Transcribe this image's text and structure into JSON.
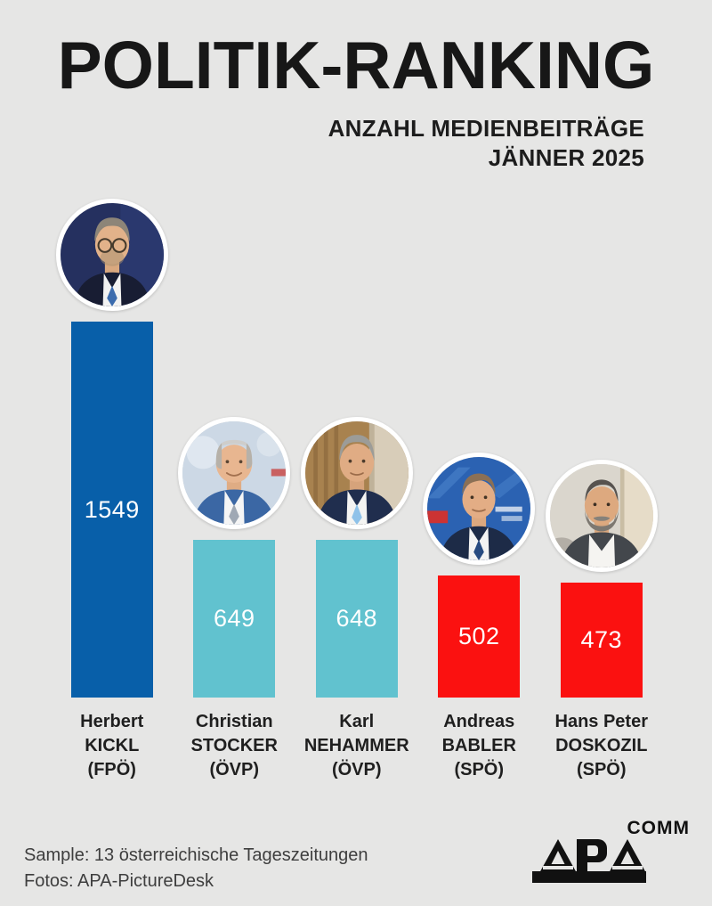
{
  "title": "POLITIK-RANKING",
  "subtitle": {
    "line1": "ANZAHL MEDIENBEITRÄGE",
    "line2": "JÄNNER 2025"
  },
  "chart_data": {
    "type": "bar",
    "title": "POLITIK-RANKING",
    "subtitle": "ANZAHL MEDIENBEITRÄGE JÄNNER 2025",
    "categories": [
      "Herbert KICKL (FPÖ)",
      "Christian STOCKER (ÖVP)",
      "Karl NEHAMMER (ÖVP)",
      "Andreas BABLER (SPÖ)",
      "Hans Peter DOSKOZIL (SPÖ)"
    ],
    "values": [
      1549,
      649,
      648,
      502,
      473
    ],
    "value_labels": [
      "1549",
      "649",
      "648",
      "502",
      "473"
    ],
    "bar_colors": [
      "#085fa9",
      "#61c2cf",
      "#61c2cf",
      "#fb1110",
      "#fb1110"
    ],
    "ylim": [
      0,
      1549
    ],
    "grid": false,
    "legend": false,
    "xlabel": "",
    "ylabel": "Anzahl Medienbeiträge"
  },
  "bars": [
    {
      "first_name": "Herbert",
      "last_name": "KICKL",
      "party": "(FPÖ)",
      "value": "1549"
    },
    {
      "first_name": "Christian",
      "last_name": "STOCKER",
      "party": "(ÖVP)",
      "value": "649"
    },
    {
      "first_name": "Karl",
      "last_name": "NEHAMMER",
      "party": "(ÖVP)",
      "value": "648"
    },
    {
      "first_name": "Andreas",
      "last_name": "BABLER",
      "party": "(SPÖ)",
      "value": "502"
    },
    {
      "first_name": "Hans Peter",
      "last_name": "DOSKOZIL",
      "party": "(SPÖ)",
      "value": "473"
    }
  ],
  "footer": {
    "sample": "Sample: 13 österreichische Tageszeitungen",
    "fotos": "Fotos: APA-PictureDesk"
  },
  "logo": {
    "brand": "APA",
    "suffix": "COMM"
  },
  "colors": {
    "background": "#e6e6e5",
    "bar_blue": "#085fa9",
    "bar_teal": "#61c2cf",
    "bar_red": "#fb1110",
    "title_text": "#171717",
    "label_text": "#1f1f1f",
    "footer_text": "#3e3e3e",
    "logo": "#111111"
  }
}
